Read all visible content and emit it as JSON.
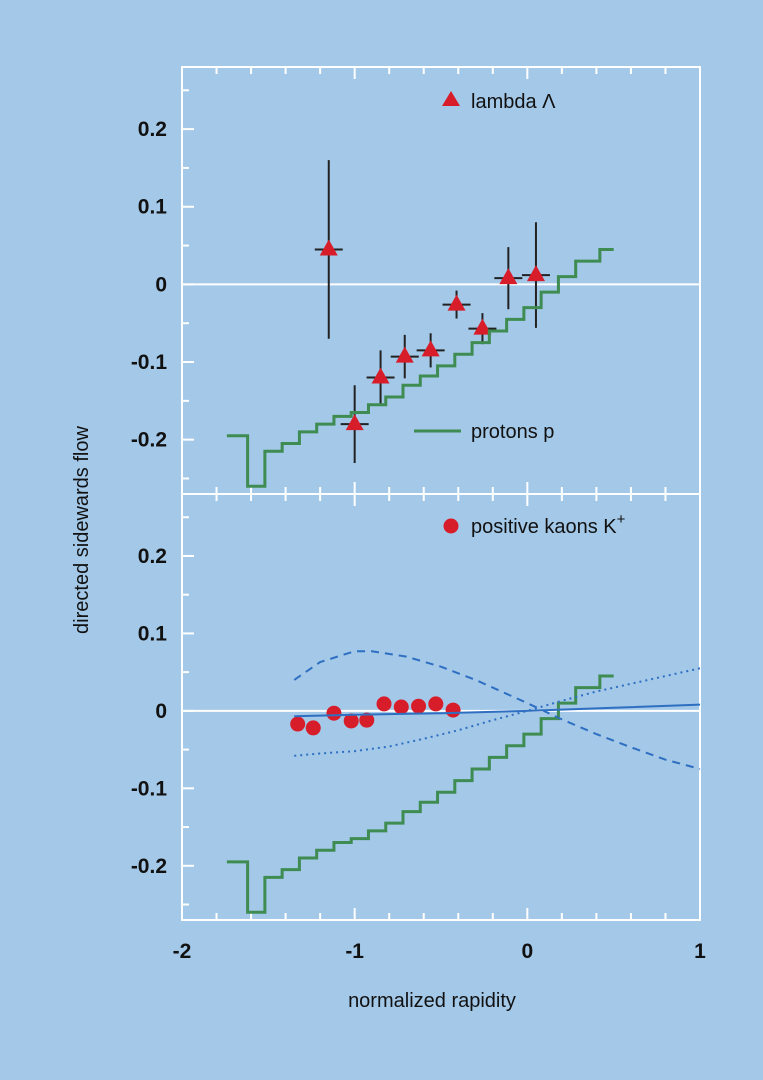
{
  "colors": {
    "background": "#a3c8e8",
    "frame": "#ffffff",
    "zero_line": "#ffffff",
    "proton_step": "#3f8c52",
    "marker": "#d81d2a",
    "error_bar": "#222222",
    "model_line": "#2f6fc2"
  },
  "chart_data": [
    {
      "type": "scatter",
      "panel": "top",
      "xlabel": "normalized rapidity",
      "ylabel": "directed sidewards flow",
      "xlim": [
        -2,
        1
      ],
      "ylim": [
        -0.27,
        0.28
      ],
      "x_ticks": [
        -2,
        -1,
        0,
        1
      ],
      "x_tick_labels": [
        "-2",
        "-1",
        "0",
        "1"
      ],
      "y_ticks": [
        -0.2,
        -0.1,
        0,
        0.1,
        0.2
      ],
      "y_tick_labels": [
        "-0.2",
        "-0.1",
        "0",
        "0.1",
        "0.2"
      ],
      "legend": [
        {
          "label": "lambda Λ",
          "marker": "triangle-icon",
          "position": "top-center"
        },
        {
          "label": "protons p",
          "marker": "line",
          "position": "bottom-center"
        }
      ],
      "series": [
        {
          "name": "lambda Λ",
          "marker": "triangle",
          "x": [
            -1.15,
            -1.0,
            -0.85,
            -0.71,
            -0.56,
            -0.41,
            -0.26,
            -0.11,
            0.05
          ],
          "y": [
            0.045,
            -0.18,
            -0.12,
            -0.093,
            -0.085,
            -0.026,
            -0.057,
            0.008,
            0.012
          ],
          "y_err": [
            0.115,
            0.05,
            0.035,
            0.028,
            0.022,
            0.018,
            0.02,
            0.04,
            0.068
          ]
        },
        {
          "name": "protons p",
          "style": "step",
          "x": [
            -1.74,
            -1.62,
            -1.52,
            -1.42,
            -1.32,
            -1.22,
            -1.12,
            -1.02,
            -0.92,
            -0.82,
            -0.72,
            -0.62,
            -0.52,
            -0.42,
            -0.32,
            -0.22,
            -0.12,
            -0.02,
            0.08,
            0.18,
            0.28,
            0.42
          ],
          "y": [
            -0.195,
            -0.26,
            -0.215,
            -0.205,
            -0.19,
            -0.18,
            -0.17,
            -0.165,
            -0.155,
            -0.145,
            -0.13,
            -0.118,
            -0.105,
            -0.09,
            -0.075,
            -0.06,
            -0.045,
            -0.03,
            -0.01,
            0.01,
            0.03,
            0.045
          ]
        }
      ]
    },
    {
      "type": "scatter",
      "panel": "bottom",
      "xlabel": "normalized rapidity",
      "ylabel": "directed sidewards flow",
      "xlim": [
        -2,
        1
      ],
      "ylim": [
        -0.27,
        0.28
      ],
      "x_ticks": [
        -2,
        -1,
        0,
        1
      ],
      "x_tick_labels": [
        "-2",
        "-1",
        "0",
        "1"
      ],
      "y_ticks": [
        -0.2,
        -0.1,
        0,
        0.1,
        0.2
      ],
      "y_tick_labels": [
        "-0.2",
        "-0.1",
        "0",
        "0.1",
        "0.2"
      ],
      "legend": [
        {
          "label": "positive kaons K",
          "superscript": "+",
          "marker": "circle-icon",
          "position": "top-center"
        }
      ],
      "series": [
        {
          "name": "positive kaons K+",
          "marker": "circle",
          "x": [
            -1.33,
            -1.24,
            -1.12,
            -1.02,
            -0.93,
            -0.83,
            -0.73,
            -0.63,
            -0.53,
            -0.43
          ],
          "y": [
            -0.017,
            -0.022,
            -0.003,
            -0.013,
            -0.012,
            0.009,
            0.005,
            0.006,
            0.009,
            0.001
          ]
        },
        {
          "style": "step",
          "x": [
            -1.74,
            -1.62,
            -1.52,
            -1.42,
            -1.32,
            -1.22,
            -1.12,
            -1.02,
            -0.92,
            -0.82,
            -0.72,
            -0.62,
            -0.52,
            -0.42,
            -0.32,
            -0.22,
            -0.12,
            -0.02,
            0.08,
            0.18,
            0.28,
            0.42
          ],
          "y": [
            -0.195,
            -0.26,
            -0.215,
            -0.205,
            -0.19,
            -0.18,
            -0.17,
            -0.165,
            -0.155,
            -0.145,
            -0.13,
            -0.118,
            -0.105,
            -0.09,
            -0.075,
            -0.06,
            -0.045,
            -0.03,
            -0.01,
            0.01,
            0.03,
            0.045
          ]
        },
        {
          "style": "dashed",
          "x": [
            -1.35,
            -1.2,
            -1.0,
            -0.9,
            -0.7,
            -0.5,
            -0.3,
            -0.1,
            0.0,
            0.2,
            0.4,
            0.6,
            0.8,
            1.0
          ],
          "y": [
            0.04,
            0.063,
            0.077,
            0.077,
            0.07,
            0.057,
            0.04,
            0.02,
            0.01,
            -0.011,
            -0.03,
            -0.047,
            -0.063,
            -0.075
          ]
        },
        {
          "style": "dotted",
          "x": [
            -1.35,
            -1.2,
            -1.0,
            -0.8,
            -0.6,
            -0.4,
            -0.2,
            0.0,
            0.2,
            0.4,
            0.6,
            0.8,
            1.0
          ],
          "y": [
            -0.058,
            -0.055,
            -0.052,
            -0.046,
            -0.036,
            -0.025,
            -0.012,
            0.0,
            0.013,
            0.025,
            0.035,
            0.045,
            0.055
          ]
        },
        {
          "style": "solid",
          "x": [
            -1.35,
            -1.0,
            -0.5,
            0.0,
            0.5,
            1.0
          ],
          "y": [
            -0.007,
            -0.005,
            -0.003,
            0.0,
            0.004,
            0.008
          ]
        }
      ]
    }
  ]
}
